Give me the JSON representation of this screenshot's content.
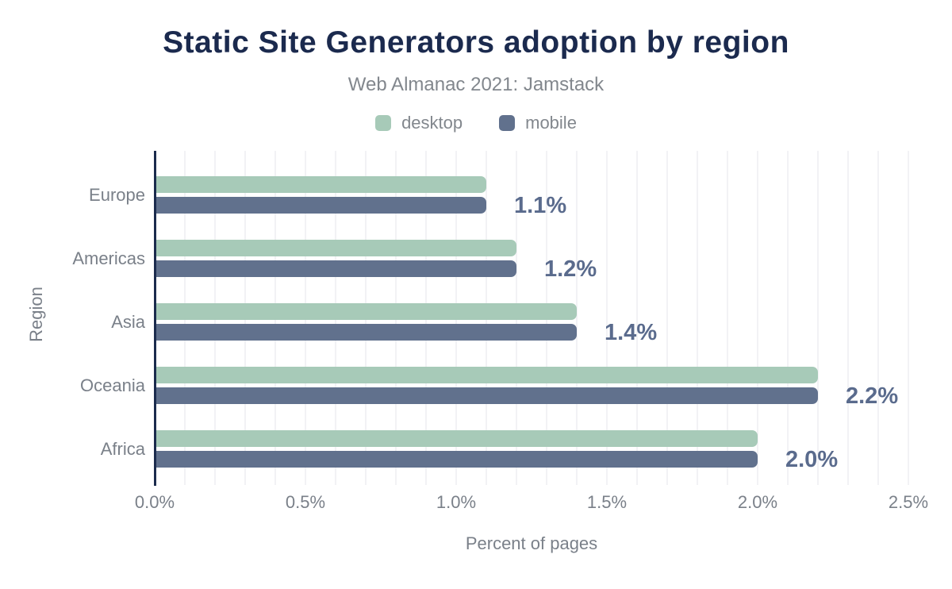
{
  "title": "Static Site Generators adoption by region",
  "subtitle": "Web Almanac 2021: Jamstack",
  "legend": {
    "items": [
      {
        "label": "desktop",
        "color": "#a7cab8"
      },
      {
        "label": "mobile",
        "color": "#61718d"
      }
    ]
  },
  "chart_data": {
    "type": "bar",
    "orientation": "horizontal",
    "title": "Static Site Generators adoption by region",
    "subtitle": "Web Almanac 2021: Jamstack",
    "categories": [
      "Europe",
      "Americas",
      "Asia",
      "Oceania",
      "Africa"
    ],
    "series": [
      {
        "name": "desktop",
        "color": "#a7cab8",
        "values": [
          1.1,
          1.2,
          1.4,
          2.2,
          2.0
        ]
      },
      {
        "name": "mobile",
        "color": "#61718d",
        "values": [
          1.1,
          1.2,
          1.4,
          2.2,
          2.0
        ]
      }
    ],
    "value_labels": [
      "1.1%",
      "1.2%",
      "1.4%",
      "2.2%",
      "2.0%"
    ],
    "xlabel": "Percent of pages",
    "ylabel": "Region",
    "xlim": [
      0,
      2.5
    ],
    "xticks": {
      "values": [
        0,
        0.5,
        1.0,
        1.5,
        2.0,
        2.5
      ],
      "labels": [
        "0.0%",
        "0.5%",
        "1.0%",
        "1.5%",
        "2.0%",
        "2.5%"
      ]
    },
    "grid": "minor vertical gridlines every 0.1%",
    "legend_position": "top-center"
  },
  "colors": {
    "title": "#1b2a4e",
    "subtitle": "#82878d",
    "axis_line": "#1b2b4d",
    "grid_line": "#f2f2f5",
    "tick_label": "#7a8089",
    "category_label": "#7a8089",
    "value_label": "#5a6b8d",
    "desktop_bar": "#a7cab8",
    "mobile_bar": "#61718d",
    "background": "#ffffff"
  }
}
